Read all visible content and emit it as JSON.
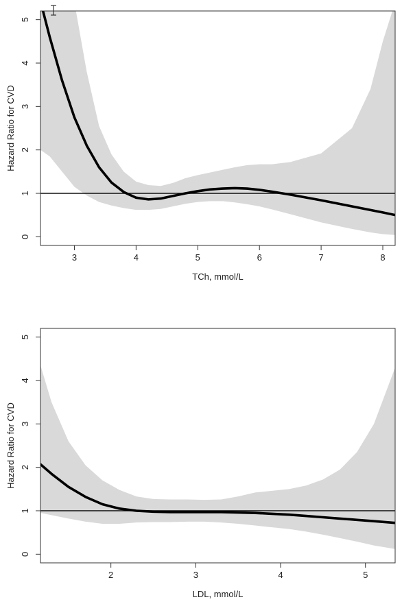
{
  "chart_data": [
    {
      "type": "line",
      "xlabel": "TCh, mmol/L",
      "ylabel": "Hazard Ratio for CVD",
      "xlim": [
        2.45,
        8.2
      ],
      "ylim": [
        -0.2,
        5.2
      ],
      "xticks": [
        3,
        4,
        5,
        6,
        7,
        8
      ],
      "yticks": [
        0,
        1,
        2,
        3,
        4,
        5
      ],
      "reference_line": 1,
      "grid": false,
      "colors": {
        "line": "#000000",
        "band": "#d9d9d9",
        "frame": "#333333"
      },
      "series": [
        {
          "x": [
            2.45,
            2.5,
            2.6,
            2.8,
            3.0,
            3.2,
            3.4,
            3.6,
            3.8,
            4.0,
            4.2,
            4.4,
            4.6,
            4.8,
            5.0,
            5.2,
            5.4,
            5.6,
            5.8,
            6.0,
            6.2,
            6.5,
            7.0,
            7.5,
            8.0,
            8.2
          ],
          "y": [
            5.4,
            5.15,
            4.6,
            3.6,
            2.75,
            2.1,
            1.6,
            1.25,
            1.03,
            0.9,
            0.86,
            0.88,
            0.94,
            1.0,
            1.05,
            1.09,
            1.11,
            1.12,
            1.11,
            1.08,
            1.04,
            0.97,
            0.84,
            0.7,
            0.56,
            0.5
          ]
        }
      ],
      "confidence_band": {
        "x": [
          2.45,
          2.6,
          2.8,
          3.0,
          3.2,
          3.4,
          3.6,
          3.8,
          4.0,
          4.2,
          4.4,
          4.6,
          4.8,
          5.0,
          5.2,
          5.4,
          5.6,
          5.8,
          6.0,
          6.2,
          6.5,
          7.0,
          7.5,
          7.8,
          8.0,
          8.2
        ],
        "lower": [
          2.0,
          1.85,
          1.5,
          1.15,
          0.95,
          0.8,
          0.72,
          0.66,
          0.62,
          0.62,
          0.64,
          0.7,
          0.76,
          0.8,
          0.82,
          0.82,
          0.79,
          0.75,
          0.7,
          0.63,
          0.52,
          0.33,
          0.18,
          0.1,
          0.06,
          0.04
        ],
        "upper": [
          5.4,
          5.4,
          5.4,
          5.4,
          3.8,
          2.55,
          1.9,
          1.5,
          1.27,
          1.19,
          1.17,
          1.24,
          1.35,
          1.42,
          1.48,
          1.54,
          1.6,
          1.65,
          1.67,
          1.67,
          1.72,
          1.92,
          2.5,
          3.4,
          4.5,
          5.4
        ]
      }
    },
    {
      "type": "line",
      "xlabel": "LDL, mmol/L",
      "ylabel": "Hazard Ratio for CVD",
      "xlim": [
        1.17,
        5.35
      ],
      "ylim": [
        -0.2,
        5.2
      ],
      "xticks": [
        2,
        3,
        4,
        5
      ],
      "yticks": [
        0,
        1,
        2,
        3,
        4,
        5
      ],
      "reference_line": 1,
      "grid": false,
      "colors": {
        "line": "#000000",
        "band": "#d9d9d9",
        "frame": "#333333"
      },
      "series": [
        {
          "x": [
            1.17,
            1.3,
            1.5,
            1.7,
            1.9,
            2.1,
            2.3,
            2.5,
            2.7,
            2.9,
            3.1,
            3.3,
            3.5,
            3.7,
            3.9,
            4.1,
            4.3,
            4.5,
            4.7,
            4.9,
            5.1,
            5.35
          ],
          "y": [
            2.07,
            1.85,
            1.55,
            1.32,
            1.15,
            1.05,
            1.0,
            0.98,
            0.97,
            0.97,
            0.97,
            0.97,
            0.96,
            0.95,
            0.93,
            0.91,
            0.88,
            0.85,
            0.82,
            0.79,
            0.76,
            0.72
          ]
        }
      ],
      "confidence_band": {
        "x": [
          1.17,
          1.3,
          1.5,
          1.7,
          1.9,
          2.1,
          2.3,
          2.5,
          2.7,
          2.9,
          3.1,
          3.3,
          3.5,
          3.7,
          3.9,
          4.1,
          4.3,
          4.5,
          4.7,
          4.9,
          5.1,
          5.35
        ],
        "lower": [
          0.95,
          0.9,
          0.82,
          0.75,
          0.7,
          0.7,
          0.73,
          0.74,
          0.74,
          0.75,
          0.75,
          0.73,
          0.7,
          0.66,
          0.62,
          0.58,
          0.52,
          0.45,
          0.37,
          0.29,
          0.2,
          0.12
        ],
        "upper": [
          4.35,
          3.5,
          2.6,
          2.05,
          1.7,
          1.48,
          1.33,
          1.27,
          1.26,
          1.26,
          1.25,
          1.26,
          1.33,
          1.42,
          1.46,
          1.5,
          1.58,
          1.72,
          1.95,
          2.35,
          3.0,
          4.3
        ]
      }
    }
  ]
}
